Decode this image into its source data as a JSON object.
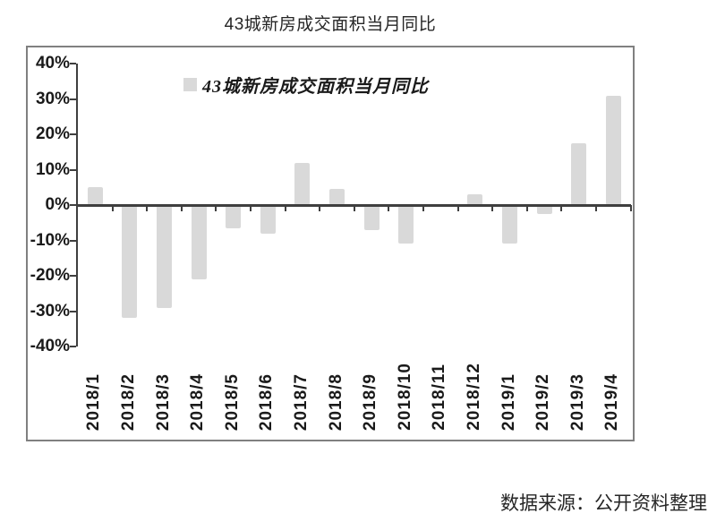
{
  "header": {
    "title": "43城新房成交面积当月同比"
  },
  "footer": {
    "source": "数据来源：公开资料整理"
  },
  "colors": {
    "bar": "#d9d9d9",
    "axis": "#3f3f3f",
    "text": "#1a1a1a",
    "plot_border": "#808080"
  },
  "chart_data": {
    "type": "bar",
    "title": "43城新房成交面积当月同比",
    "legend": "43城新房成交面积当月同比",
    "legend_position": "top-center",
    "categories": [
      "2018/1",
      "2018/2",
      "2018/3",
      "2018/4",
      "2018/5",
      "2018/6",
      "2018/7",
      "2018/8",
      "2018/9",
      "2018/10",
      "2018/11",
      "2018/12",
      "2019/1",
      "2019/2",
      "2019/3",
      "2019/4"
    ],
    "values": [
      5,
      -32,
      -29,
      -21,
      -6.5,
      -8,
      12,
      4.5,
      -7,
      -11,
      -0.5,
      3,
      -11,
      -2.5,
      17.5,
      31
    ],
    "unit": "%",
    "xlabel": "",
    "ylabel": "",
    "ylim": [
      -40,
      40
    ],
    "ytick_step": 10,
    "yticks": [
      "40%",
      "30%",
      "20%",
      "10%",
      "0%",
      "-10%",
      "-20%",
      "-30%",
      "-40%"
    ],
    "grid": false
  }
}
